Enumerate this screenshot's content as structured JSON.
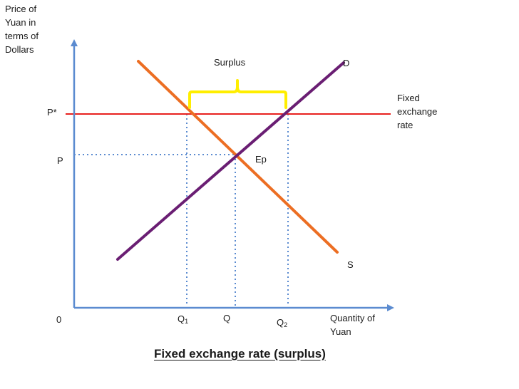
{
  "title": "Fixed exchange rate (surplus)",
  "y_axis_label": [
    "Price of",
    "Yuan in",
    "terms of",
    "Dollars"
  ],
  "x_axis_label": [
    "Quantity of",
    "Yuan"
  ],
  "origin_label": "0",
  "price_labels": {
    "p_star": "P*",
    "p": "P"
  },
  "quantity_labels": {
    "q1": {
      "base": "Q",
      "sub": "1"
    },
    "q": "Q",
    "q2": {
      "base": "Q",
      "sub": "2"
    }
  },
  "curve_labels": {
    "demand": "D",
    "supply": "S",
    "equilibrium": "Ep"
  },
  "annotations": {
    "surplus": "Surplus",
    "fixed_rate": [
      "Fixed",
      "exchange",
      "rate"
    ]
  },
  "colors": {
    "axis": "#5b8bd0",
    "supply_curve": "#ec6e23",
    "demand_curve": "#6a1e73",
    "fixed_rate_line": "#e8201e",
    "dotted_guides": "#5b8bd0",
    "surplus_brace": "#ffee00"
  }
}
